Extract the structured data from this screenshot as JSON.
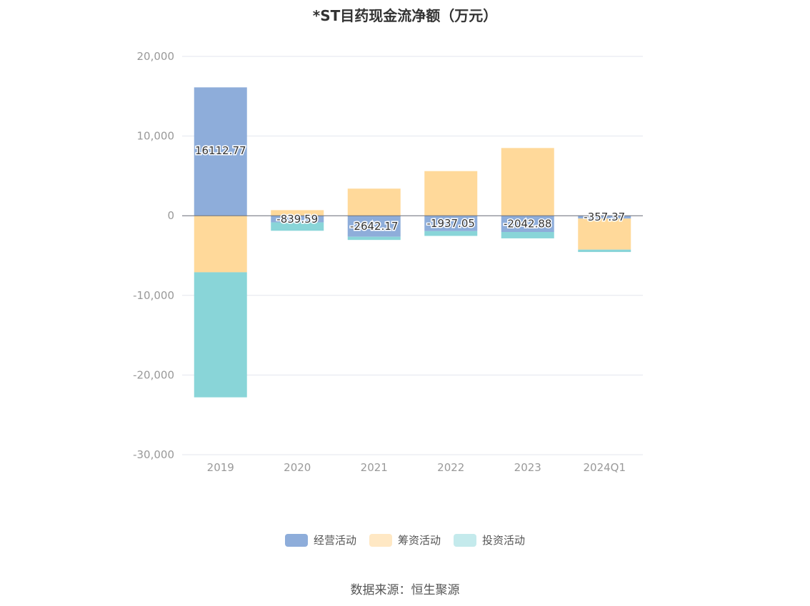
{
  "chart_data": {
    "type": "bar",
    "stacked": true,
    "title": "*ST目药现金流净额（万元）",
    "categories": [
      "2019",
      "2020",
      "2021",
      "2022",
      "2023",
      "2024Q1"
    ],
    "series": [
      {
        "name": "经营活动",
        "color": "#8eadda",
        "legend_color": "#8eadda",
        "values": [
          16112.77,
          -839.59,
          -2642.17,
          -1937.05,
          -2042.88,
          -357.37
        ]
      },
      {
        "name": "筹资活动",
        "color": "#ffd99a",
        "legend_color": "#ffe8c4",
        "values": [
          -7100,
          700,
          3400,
          5600,
          8500,
          -3900
        ]
      },
      {
        "name": "投资活动",
        "color": "#89d5d8",
        "legend_color": "#c4eaec",
        "values": [
          -15700,
          -1050,
          -400,
          -600,
          -800,
          -300
        ]
      }
    ],
    "data_labels": [
      "16112.77",
      "-839.59",
      "-2642.17",
      "-1937.05",
      "-2042.88",
      "-357.37"
    ],
    "y_ticks": [
      20000,
      10000,
      0,
      -10000,
      -20000,
      -30000
    ],
    "y_tick_labels": [
      "20,000",
      "10,000",
      "0",
      "-10,000",
      "-20,000",
      "-30,000"
    ],
    "ylim": [
      -30000,
      20000
    ],
    "grid": true,
    "legend_position": "bottom-center"
  },
  "source": "数据来源：恒生聚源"
}
